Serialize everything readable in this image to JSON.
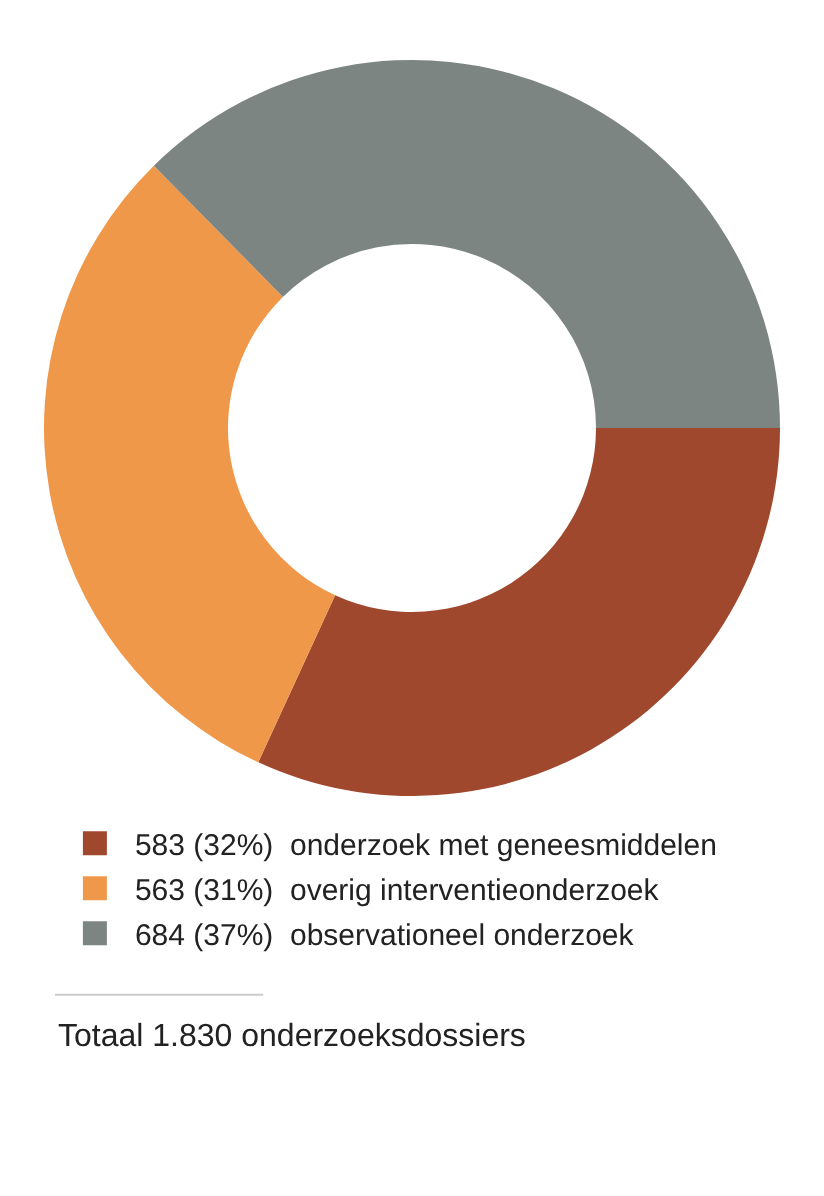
{
  "chart_data": {
    "type": "donut",
    "categories": [
      "onderzoek met geneesmiddelen",
      "overig interventieonderzoek",
      "observationeel onderzoek"
    ],
    "values": [
      583,
      563,
      684
    ],
    "value_labels": [
      "583 (32%)",
      "563 (31%)",
      "684 (37%)"
    ],
    "colors": [
      "#a0482e",
      "#f0984a",
      "#7d8583"
    ],
    "legend": "bottom",
    "annotations": [
      "Totaal 1.830 onderzoeksdossiers"
    ]
  }
}
